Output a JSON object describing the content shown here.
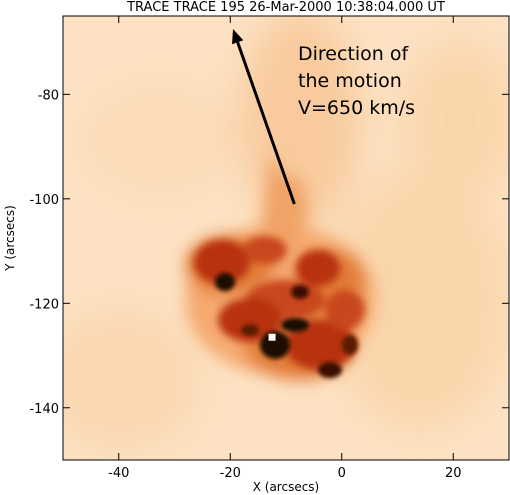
{
  "image": {
    "title": "TRACE TRACE 195 26-Mar-2000 10:38:04.000 UT",
    "x_axis": {
      "label": "X (arcsecs)",
      "range": [
        -50,
        30
      ],
      "ticks": [
        {
          "value": -40,
          "label": "-40"
        },
        {
          "value": -20,
          "label": "-20"
        },
        {
          "value": 0,
          "label": "0"
        },
        {
          "value": 20,
          "label": "20"
        }
      ]
    },
    "y_axis": {
      "label": "Y (arcsecs)",
      "range": [
        -150,
        -65
      ],
      "ticks": [
        {
          "value": -80,
          "label": "-80"
        },
        {
          "value": -100,
          "label": "-100"
        },
        {
          "value": -120,
          "label": "-120"
        },
        {
          "value": -140,
          "label": "-140"
        }
      ]
    },
    "annotation": {
      "lines": [
        "Direction of",
        "the motion",
        "V=650 km/s"
      ],
      "arrow_from": [
        -8.5,
        -101
      ],
      "arrow_to": [
        -19.5,
        -67.5
      ]
    },
    "marker": {
      "x": -12.5,
      "y": -126.5,
      "color": "#ffffff"
    },
    "colors": {
      "background": "#fce2c3",
      "core": "#1a0800",
      "mid": "#b8320c",
      "halo": "#f3a060"
    }
  }
}
